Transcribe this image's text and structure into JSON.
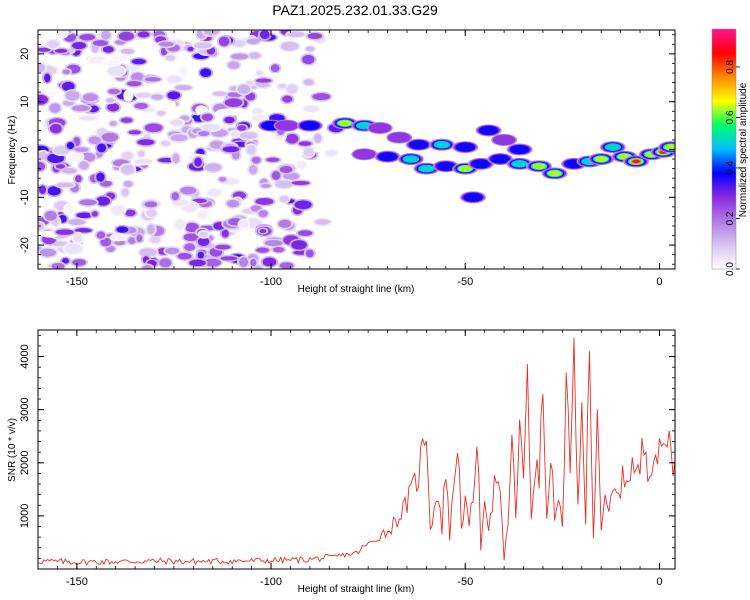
{
  "title": "PAZ1.2025.232.01.33.G29",
  "colors": {
    "snr_line": "#e8302a",
    "spectrogram_scale": [
      "#ffffff",
      "#d8c4f2",
      "#b07ae6",
      "#8a2be2",
      "#0000ff",
      "#00bfff",
      "#00ff66",
      "#ffff00",
      "#ff8800",
      "#ff0000",
      "#ff1493"
    ]
  },
  "chart_data": [
    {
      "type": "heatmap",
      "xlabel": "Height of straight line (km)",
      "ylabel": "Frequency (Hz)",
      "xlim": [
        -160,
        4
      ],
      "ylim": [
        -25,
        25
      ],
      "xticks": [
        -150,
        -100,
        -50,
        0
      ],
      "yticks": [
        -20,
        -10,
        0,
        10,
        20
      ],
      "colorbar": {
        "label": "Normalized spectral amplitude",
        "range": [
          0,
          0.95
        ],
        "ticks": [
          0.0,
          0.2,
          0.4,
          0.6,
          0.8
        ]
      },
      "noise_region": {
        "x_range": [
          -160,
          -80
        ],
        "y_range": [
          -25,
          25
        ],
        "amplitude": 0.15
      },
      "signal_track": [
        {
          "x": -100,
          "y": 5,
          "amp": 0.35
        },
        {
          "x": -96,
          "y": 5,
          "amp": 0.3
        },
        {
          "x": -90,
          "y": 5,
          "amp": 0.35
        },
        {
          "x": -81,
          "y": 5.5,
          "amp": 0.62
        },
        {
          "x": -76,
          "y": 5,
          "amp": 0.45
        },
        {
          "x": -72,
          "y": 4.5,
          "amp": 0.3
        },
        {
          "x": -67,
          "y": 2.5,
          "amp": 0.3
        },
        {
          "x": -62,
          "y": 1,
          "amp": 0.35
        },
        {
          "x": -56,
          "y": 1,
          "amp": 0.55
        },
        {
          "x": -50,
          "y": 0.5,
          "amp": 0.4
        },
        {
          "x": -44,
          "y": 4,
          "amp": 0.35
        },
        {
          "x": -40,
          "y": 2,
          "amp": 0.3
        },
        {
          "x": -36,
          "y": 0,
          "amp": 0.35
        },
        {
          "x": -76,
          "y": -1,
          "amp": 0.3
        },
        {
          "x": -70,
          "y": -1.5,
          "amp": 0.4
        },
        {
          "x": -64,
          "y": -2,
          "amp": 0.45
        },
        {
          "x": -60,
          "y": -4,
          "amp": 0.45
        },
        {
          "x": -55,
          "y": -3.5,
          "amp": 0.35
        },
        {
          "x": -50,
          "y": -4,
          "amp": 0.62
        },
        {
          "x": -46,
          "y": -3,
          "amp": 0.4
        },
        {
          "x": -41,
          "y": -2,
          "amp": 0.35
        },
        {
          "x": -36,
          "y": -3,
          "amp": 0.55
        },
        {
          "x": -31,
          "y": -3.5,
          "amp": 0.62
        },
        {
          "x": -27,
          "y": -5,
          "amp": 0.6
        },
        {
          "x": -22,
          "y": -3,
          "amp": 0.4
        },
        {
          "x": -18,
          "y": -2.5,
          "amp": 0.55
        },
        {
          "x": -15,
          "y": -2,
          "amp": 0.62
        },
        {
          "x": -12,
          "y": 0.5,
          "amp": 0.5
        },
        {
          "x": -9,
          "y": -1.5,
          "amp": 0.6
        },
        {
          "x": -6,
          "y": -2.5,
          "amp": 0.93
        },
        {
          "x": -2,
          "y": -1,
          "amp": 0.6
        },
        {
          "x": 1,
          "y": -0.5,
          "amp": 0.9
        },
        {
          "x": 3,
          "y": 0.5,
          "amp": 0.7
        },
        {
          "x": -48,
          "y": -10,
          "amp": 0.4
        }
      ]
    },
    {
      "type": "line",
      "xlabel": "Height of straight line (km)",
      "ylabel": "SNR (10 * v/v)",
      "xlim": [
        -160,
        4
      ],
      "ylim": [
        0,
        4500
      ],
      "xticks": [
        -150,
        -100,
        -50,
        0
      ],
      "yticks": [
        1000,
        2000,
        3000,
        4000
      ],
      "series": [
        {
          "values": {
            "x": [
              -160,
              -150,
              -140,
              -130,
              -120,
              -110,
              -100,
              -90,
              -85,
              -80,
              -78,
              -76,
              -74,
              -72,
              -70,
              -68,
              -66,
              -64,
              -62,
              -60,
              -59,
              -58,
              -57,
              -56,
              -55,
              -54,
              -52,
              -51,
              -50,
              -49,
              -48,
              -47,
              -46,
              -45,
              -44,
              -42,
              -41,
              -40,
              -39,
              -38,
              -37,
              -36,
              -35,
              -34,
              -33,
              -32,
              -31,
              -30,
              -29,
              -28,
              -27,
              -26,
              -25,
              -24,
              -23,
              -22,
              -21,
              -20,
              -19,
              -18,
              -17,
              -16,
              -15,
              -14,
              -13,
              -12,
              -11,
              -10,
              -9,
              -8,
              -7,
              -6,
              -5,
              -4,
              -3,
              -2,
              -1,
              0,
              1,
              2,
              3,
              4
            ],
            "y": [
              150,
              130,
              140,
              150,
              140,
              150,
              160,
              180,
              220,
              280,
              300,
              420,
              500,
              650,
              700,
              900,
              1100,
              1400,
              1800,
              2700,
              800,
              1100,
              1500,
              700,
              2000,
              600,
              2500,
              900,
              1200,
              800,
              1300,
              2700,
              300,
              1500,
              800,
              1800,
              1300,
              150,
              900,
              2400,
              1000,
              2800,
              1500,
              3900,
              1000,
              2000,
              1600,
              3500,
              800,
              2400,
              800,
              1500,
              700,
              3300,
              1800,
              4050,
              1400,
              2700,
              900,
              4450,
              600,
              3100,
              800,
              1200,
              1000,
              1500,
              1300,
              1600,
              1700,
              1800,
              2000,
              1700,
              1900,
              2400,
              2000,
              2100,
              2200,
              2100,
              2300,
              2600,
              2200,
              2050
            ]
          }
        }
      ]
    }
  ]
}
